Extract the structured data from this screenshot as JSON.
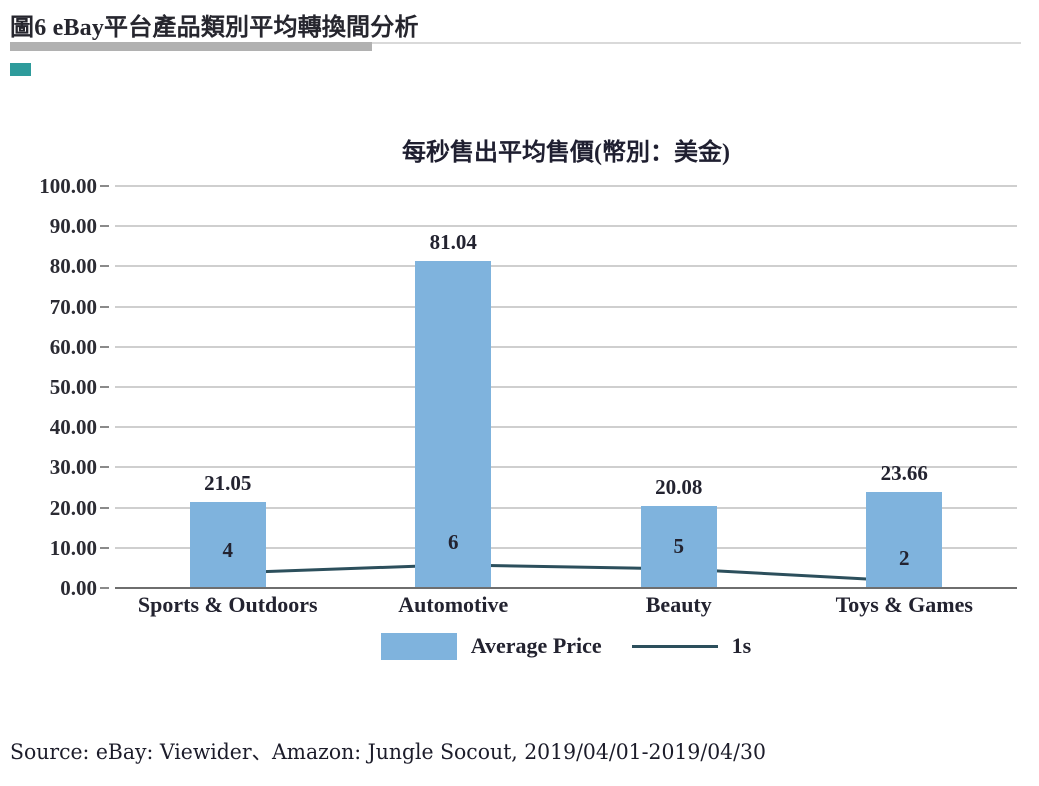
{
  "page": {
    "header_title": "圖6 eBay平台產品類別平均轉換間分析",
    "source_note": "Source: eBay: Viewider、Amazon: Jungle Socout, 2019/04/01-2019/04/30",
    "accent_square_color": "#2E9B9B"
  },
  "chart_data": {
    "type": "bar",
    "subtype": "bar-line-combo",
    "title": "每秒售出平均售價(幣別：美金)",
    "categories": [
      "Sports & Outdoors",
      "Automotive",
      "Beauty",
      "Toys & Games"
    ],
    "series": [
      {
        "name": "Average Price",
        "type": "bar",
        "values": [
          21.05,
          81.04,
          20.08,
          23.66
        ],
        "labels": [
          "21.05",
          "81.04",
          "20.08",
          "23.66"
        ],
        "color": "#7FB3DD"
      },
      {
        "name": "1s",
        "type": "line",
        "values": [
          4,
          6,
          5,
          2
        ],
        "labels": [
          "4",
          "6",
          "5",
          "2"
        ],
        "color": "#2C4F5C"
      }
    ],
    "ylim": [
      0,
      100
    ],
    "y_ticks": [
      "0.00",
      "10.00",
      "20.00",
      "30.00",
      "40.00",
      "50.00",
      "60.00",
      "70.00",
      "80.00",
      "90.00",
      "100.00"
    ],
    "grid": true,
    "legend_position": "bottom",
    "grid_color": "#cfcfcf",
    "axis_color": "#6e6e6e"
  }
}
